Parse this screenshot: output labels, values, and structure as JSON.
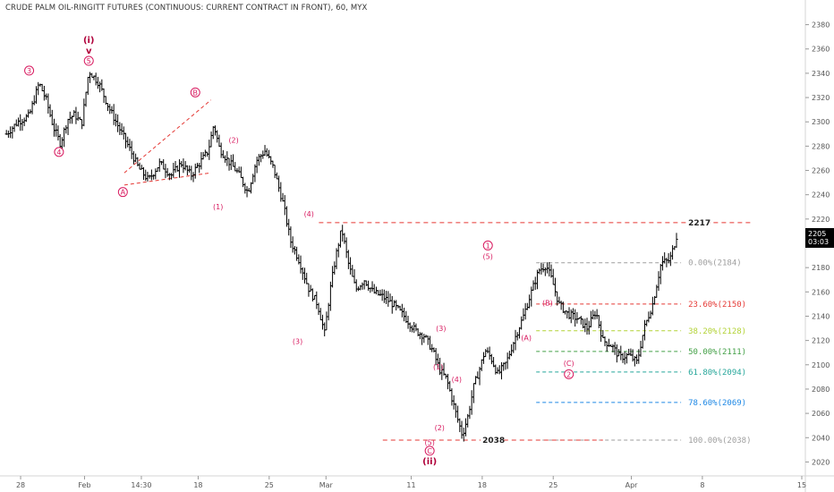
{
  "title": "CRUDE PALM OIL-RINGITT FUTURES (CONTINUOUS: CURRENT CONTRACT IN FRONT), 60, MYX",
  "price_badge": {
    "value": "2205",
    "time": "03:03"
  },
  "colors": {
    "wave": "#d81b60",
    "level_line": "#e53935",
    "candle": "#000000"
  },
  "chart_data": {
    "type": "candlestick",
    "y_axis": {
      "min": 2010,
      "max": 2390,
      "ticks": [
        2020,
        2040,
        2060,
        2080,
        2100,
        2120,
        2140,
        2160,
        2180,
        2200,
        2220,
        2240,
        2260,
        2280,
        2300,
        2320,
        2340,
        2360,
        2380
      ]
    },
    "x_ticks": [
      {
        "label": "28",
        "t": 1
      },
      {
        "label": "Feb",
        "t": 5.5
      },
      {
        "label": "14:30",
        "t": 9.5
      },
      {
        "label": "18",
        "t": 13.5
      },
      {
        "label": "25",
        "t": 18.5
      },
      {
        "label": "Mar",
        "t": 22.5
      },
      {
        "label": "11",
        "t": 28.5
      },
      {
        "label": "18",
        "t": 33.5
      },
      {
        "label": "25",
        "t": 38.5
      },
      {
        "label": "Apr",
        "t": 44
      },
      {
        "label": "8",
        "t": 49
      },
      {
        "label": "15",
        "t": 56
      }
    ],
    "path": [
      [
        0,
        2290
      ],
      [
        0.8,
        2300
      ],
      [
        1.6,
        2305
      ],
      [
        2.3,
        2332
      ],
      [
        2.8,
        2318
      ],
      [
        3.3,
        2296
      ],
      [
        3.8,
        2282
      ],
      [
        4.3,
        2302
      ],
      [
        4.8,
        2306
      ],
      [
        5.3,
        2298
      ],
      [
        5.8,
        2342
      ],
      [
        6.5,
        2332
      ],
      [
        7.2,
        2312
      ],
      [
        7.8,
        2298
      ],
      [
        8.5,
        2282
      ],
      [
        9.3,
        2262
      ],
      [
        10,
        2252
      ],
      [
        10.8,
        2266
      ],
      [
        11.6,
        2256
      ],
      [
        12.3,
        2266
      ],
      [
        13,
        2256
      ],
      [
        13.6,
        2266
      ],
      [
        14.2,
        2276
      ],
      [
        14.6,
        2298
      ],
      [
        15,
        2278
      ],
      [
        15.6,
        2268
      ],
      [
        16.3,
        2258
      ],
      [
        17,
        2242
      ],
      [
        17.6,
        2268
      ],
      [
        18.2,
        2276
      ],
      [
        18.8,
        2262
      ],
      [
        19.5,
        2232
      ],
      [
        20,
        2202
      ],
      [
        20.6,
        2186
      ],
      [
        21.3,
        2162
      ],
      [
        21.9,
        2150
      ],
      [
        22.4,
        2126
      ],
      [
        22.8,
        2162
      ],
      [
        23.2,
        2190
      ],
      [
        23.6,
        2212
      ],
      [
        24.1,
        2182
      ],
      [
        24.6,
        2162
      ],
      [
        25.2,
        2170
      ],
      [
        25.8,
        2160
      ],
      [
        26.5,
        2156
      ],
      [
        27.2,
        2150
      ],
      [
        28,
        2140
      ],
      [
        28.8,
        2128
      ],
      [
        29.4,
        2124
      ],
      [
        30,
        2112
      ],
      [
        30.5,
        2096
      ],
      [
        31,
        2088
      ],
      [
        31.6,
        2062
      ],
      [
        32.1,
        2042
      ],
      [
        32.5,
        2058
      ],
      [
        32.9,
        2082
      ],
      [
        33.3,
        2096
      ],
      [
        33.7,
        2112
      ],
      [
        34.1,
        2106
      ],
      [
        34.6,
        2092
      ],
      [
        35.2,
        2102
      ],
      [
        35.8,
        2122
      ],
      [
        36.4,
        2140
      ],
      [
        36.9,
        2158
      ],
      [
        37.5,
        2178
      ],
      [
        38,
        2182
      ],
      [
        38.4,
        2170
      ],
      [
        38.9,
        2150
      ],
      [
        39.5,
        2142
      ],
      [
        40.2,
        2138
      ],
      [
        40.9,
        2130
      ],
      [
        41.5,
        2144
      ],
      [
        42,
        2120
      ],
      [
        42.6,
        2116
      ],
      [
        43.2,
        2106
      ],
      [
        43.8,
        2108
      ],
      [
        44.4,
        2102
      ],
      [
        44.9,
        2130
      ],
      [
        45.5,
        2150
      ],
      [
        46.1,
        2184
      ],
      [
        46.7,
        2186
      ],
      [
        47.1,
        2202
      ],
      [
        47.3,
        2212
      ]
    ],
    "fib": [
      {
        "label": "0.00%(2184)",
        "ratio": "0.00%",
        "price": 2184,
        "color": "#9e9e9e"
      },
      {
        "label": "23.60%(2150)",
        "ratio": "23.60%",
        "price": 2150,
        "color": "#e53935"
      },
      {
        "label": "38.20%(2128)",
        "ratio": "38.20%",
        "price": 2128,
        "color": "#b2d235"
      },
      {
        "label": "50.00%(2111)",
        "ratio": "50.00%",
        "price": 2111,
        "color": "#43a047"
      },
      {
        "label": "61.80%(2094)",
        "ratio": "61.80%",
        "price": 2094,
        "color": "#26a69a"
      },
      {
        "label": "78.60%(2069)",
        "ratio": "78.60%",
        "price": 2069,
        "color": "#1e88e5"
      },
      {
        "label": "100.00%(2038)",
        "ratio": "100.00%",
        "price": 2038,
        "color": "#9e9e9e"
      }
    ],
    "levels": [
      {
        "label": "2217",
        "price": 2217,
        "t_start": 22,
        "t_end": 52.5
      },
      {
        "label": "2038",
        "price": 2038,
        "t_start": 26.5,
        "t_end": 42
      }
    ],
    "wave_labels": [
      {
        "text": "(i)",
        "t": 5.8,
        "price": 2365,
        "style": "big"
      },
      {
        "text": "v",
        "t": 5.8,
        "price": 2356,
        "style": "big"
      },
      {
        "text": "5",
        "t": 5.8,
        "price": 2348,
        "style": "circle"
      },
      {
        "text": "3",
        "t": 1.6,
        "price": 2340,
        "style": "circle"
      },
      {
        "text": "4",
        "t": 3.7,
        "price": 2273,
        "style": "circle"
      },
      {
        "text": "A",
        "t": 8.2,
        "price": 2240,
        "style": "circle"
      },
      {
        "text": "B",
        "t": 13.3,
        "price": 2322,
        "style": "circle"
      },
      {
        "text": "(2)",
        "t": 16.0,
        "price": 2283,
        "style": "plain"
      },
      {
        "text": "(1)",
        "t": 14.9,
        "price": 2228,
        "style": "plain"
      },
      {
        "text": "(4)",
        "t": 21.3,
        "price": 2222,
        "style": "plain"
      },
      {
        "text": "(3)",
        "t": 20.5,
        "price": 2117,
        "style": "plain"
      },
      {
        "text": "(1)",
        "t": 30.4,
        "price": 2096,
        "style": "plain"
      },
      {
        "text": "(3)",
        "t": 30.6,
        "price": 2128,
        "style": "plain"
      },
      {
        "text": "(2)",
        "t": 30.5,
        "price": 2046,
        "style": "plain"
      },
      {
        "text": "(4)",
        "t": 31.7,
        "price": 2086,
        "style": "plain"
      },
      {
        "text": "(5)",
        "t": 29.8,
        "price": 2034,
        "style": "plain"
      },
      {
        "text": "C",
        "t": 29.8,
        "price": 2027,
        "style": "circle"
      },
      {
        "text": "(ii)",
        "t": 29.8,
        "price": 2018,
        "style": "big"
      },
      {
        "text": "1",
        "t": 33.9,
        "price": 2196,
        "style": "circle"
      },
      {
        "text": "(5)",
        "t": 33.9,
        "price": 2187,
        "style": "plain"
      },
      {
        "text": "(B)",
        "t": 38.1,
        "price": 2149,
        "style": "plain"
      },
      {
        "text": "(A)",
        "t": 36.6,
        "price": 2120,
        "style": "plain"
      },
      {
        "text": "(C)",
        "t": 39.6,
        "price": 2099,
        "style": "plain"
      },
      {
        "text": "2",
        "t": 39.6,
        "price": 2090,
        "style": "circle"
      }
    ],
    "triangle": [
      {
        "t1": 8.3,
        "p1": 2258,
        "t2": 14.4,
        "p2": 2318
      },
      {
        "t1": 8.3,
        "p1": 2248,
        "t2": 14.4,
        "p2": 2258
      }
    ]
  }
}
